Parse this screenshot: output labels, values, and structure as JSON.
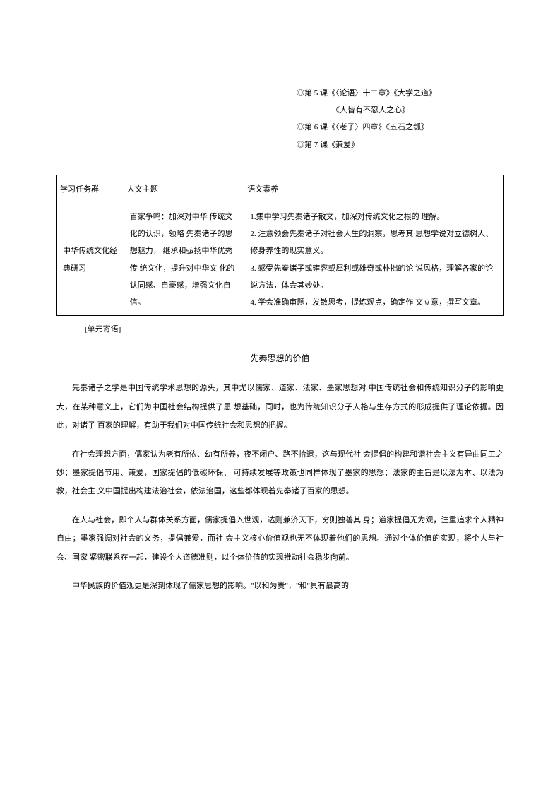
{
  "lessons": {
    "l1": "◎第 5 课《〈论语〉十二章》《大学之道》",
    "l1_sub": "《人皆有不忍人之心》",
    "l2": "◎第 6 课《〈老子〉四章》《五石之瓠》",
    "l3": "◎第 7 课《兼爱》"
  },
  "table": {
    "headers": {
      "h1": "学习任务群",
      "h2": "人文主题",
      "h3": "语文素养"
    },
    "row": {
      "c1": "中华传统文化经典研习",
      "c2": "百家争鸣：加深对中华 传统文化的认识，领略 先秦诸子的思想魅力， 继承和弘扬中华优秀传 统文化，提升对中华文 化的认同感、自豪感，增强文化自信。",
      "c3_items": {
        "i1": "1.集中学习先秦诸子散文，加深对传统文化之根的 理解。",
        "i2": "2. 注意领会先秦诸子对社会人生的洞察，思考其 思想学说对立德树人、修身养性的现实意义。",
        "i3": "3. 感受先秦诸子或雍容或犀利或雄奇或朴拙的论 说风格，理解各家的论说方法，体会其妙处。",
        "i4": "4. 学会准确审题，发散思考，提炼观点，确定作 文立意，撰写文章。"
      }
    }
  },
  "unit_note": "[单元寄语]",
  "essay": {
    "title": "先秦思想的价值",
    "p1": "先秦诸子之学是中国传统学术思想的源头，其中尤以儒家、道家、法家、墨家思想对 中国传统社会和传统知识分子的影响更大，在某种意义上，它们为中国社会结构提供了思 想基础，同时，也为传统知识分子人格与生存方式的形成提供了理论依据。因此，对诸子 百家的理解，有助于我们对中国传统社会和思想的把握。",
    "p2": "在社会理想方面，儒家认为老有所依、幼有所养，夜不闭户、路不拾遗，这与现代社 会提倡的构建和谐社会主义有异曲同工之妙；墨家提倡节用、兼爱，国家提倡的低碳环保、 可持续发展等政策也同样体现了墨家的思想；法家的主旨是以法为本、以法为教，社会主 义中国提出构建法治社会，依法治国，这些都体现着先秦诸子百家的思想。",
    "p3": "在人与社会，即个人与群体关系方面，儒家提倡入世观，达则兼济天下，穷则独善其 身；道家提倡无为观，注重追求个人精神自由；墨家强调对社会的义务，提倡兼爱，而社 会主义核心价值观也无不体现着他们的思想。通过个体价值的实现，将个人与社会、国家 紧密联系在一起，建设个人道德准则，以个体价值的实现推动社会稳步向前。",
    "p4": "中华民族的价值观更是深刻体现了儒家思想的影响。\"以和为贵\"，\"和\"具有最高的"
  }
}
